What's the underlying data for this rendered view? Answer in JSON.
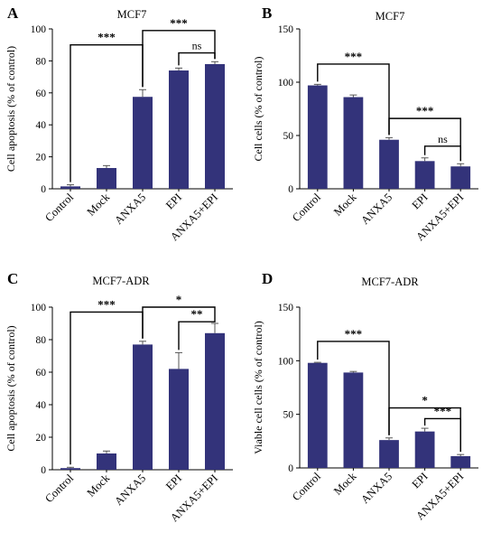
{
  "colors": {
    "bar": "#33337a",
    "axis": "#000000",
    "error": "#555555"
  },
  "chart_data": [
    {
      "panel": "A",
      "type": "bar",
      "title": "MCF7",
      "ylabel": "Cell apoptosis (% of control)",
      "categories": [
        "Control",
        "Mock",
        "ANXA5",
        "EPI",
        "ANXA5+EPI"
      ],
      "values": [
        1.5,
        13,
        57.5,
        74,
        78
      ],
      "errors": [
        1,
        1.5,
        4.5,
        1.5,
        1.5
      ],
      "ylim": [
        0,
        100
      ],
      "yticks": [
        "0",
        "20",
        "40",
        "60",
        "80",
        "100"
      ],
      "significance": [
        {
          "from": 0,
          "to": 2,
          "y": 90,
          "label": "***"
        },
        {
          "from": 2,
          "to": 4,
          "y": 99,
          "label": "***"
        },
        {
          "from": 3,
          "to": 4,
          "y": 85,
          "label": "ns"
        }
      ]
    },
    {
      "panel": "B",
      "type": "bar",
      "title": "MCF7",
      "ylabel": "Cell cells (% of control)",
      "categories": [
        "Control",
        "Mock",
        "ANXA5",
        "EPI",
        "ANXA5+EPI"
      ],
      "values": [
        97,
        86,
        46,
        26,
        21
      ],
      "errors": [
        1,
        2,
        2,
        3,
        2.5
      ],
      "ylim": [
        0,
        150
      ],
      "yticks": [
        "0",
        "50",
        "100",
        "150"
      ],
      "significance": [
        {
          "from": 0,
          "to": 2,
          "y": 117,
          "label": "***"
        },
        {
          "from": 2,
          "to": 4,
          "y": 66,
          "label": "***"
        },
        {
          "from": 3,
          "to": 4,
          "y": 40,
          "label": "ns"
        }
      ]
    },
    {
      "panel": "C",
      "type": "bar",
      "title": "MCF7-ADR",
      "ylabel": "Cell apoptosis (% of control)",
      "categories": [
        "Control",
        "Mock",
        "ANXA5",
        "EPI",
        "ANXA5+EPI"
      ],
      "values": [
        1,
        10,
        77,
        62,
        84
      ],
      "errors": [
        0.5,
        1.5,
        2,
        10,
        6
      ],
      "ylim": [
        0,
        100
      ],
      "yticks": [
        "0",
        "20",
        "40",
        "60",
        "80",
        "100"
      ],
      "significance": [
        {
          "from": 0,
          "to": 2,
          "y": 97,
          "label": "***"
        },
        {
          "from": 2,
          "to": 4,
          "y": 100,
          "label": "*"
        },
        {
          "from": 3,
          "to": 4,
          "y": 91,
          "label": "**"
        }
      ]
    },
    {
      "panel": "D",
      "type": "bar",
      "title": "MCF7-ADR",
      "ylabel": "Viable cell cells (% of control)",
      "categories": [
        "Control",
        "Mock",
        "ANXA5",
        "EPI",
        "ANXA5+EPI"
      ],
      "values": [
        98,
        89,
        26,
        34,
        11
      ],
      "errors": [
        0.5,
        1,
        2,
        3,
        1.5
      ],
      "ylim": [
        0,
        150
      ],
      "yticks": [
        "0",
        "50",
        "100",
        "150"
      ],
      "significance": [
        {
          "from": 0,
          "to": 2,
          "y": 118,
          "label": "***"
        },
        {
          "from": 2,
          "to": 4,
          "y": 56,
          "label": "*"
        },
        {
          "from": 3,
          "to": 4,
          "y": 46,
          "label": "***"
        }
      ]
    }
  ]
}
